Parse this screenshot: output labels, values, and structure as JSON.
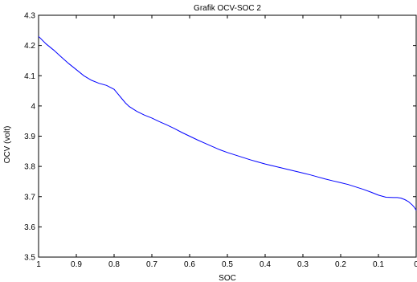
{
  "chart_data": {
    "type": "line",
    "title": "Grafik OCV-SOC 2",
    "xlabel": "SOC",
    "ylabel": "OCV (volt)",
    "xlim": [
      1,
      0
    ],
    "ylim": [
      3.5,
      4.3
    ],
    "x_reversed": true,
    "grid": false,
    "legend": "none",
    "xticks": [
      1,
      0.9,
      0.8,
      0.7,
      0.6,
      0.5,
      0.4,
      0.3,
      0.2,
      0.1,
      0
    ],
    "xtick_labels": [
      "1",
      "0.9",
      "0.8",
      "0.7",
      "0.6",
      "0.5",
      "0.4",
      "0.3",
      "0.2",
      "0.1",
      "0"
    ],
    "yticks": [
      3.5,
      3.6,
      3.7,
      3.8,
      3.9,
      4.0,
      4.1,
      4.2,
      4.3
    ],
    "ytick_labels": [
      "3.5",
      "3.6",
      "3.7",
      "3.8",
      "3.9",
      "4",
      "4.1",
      "4.2",
      "4.3"
    ],
    "series": [
      {
        "color": "#0000ff",
        "x": [
          1.0,
          0.98,
          0.96,
          0.94,
          0.92,
          0.9,
          0.88,
          0.86,
          0.84,
          0.82,
          0.8,
          0.79,
          0.78,
          0.77,
          0.76,
          0.75,
          0.74,
          0.72,
          0.7,
          0.68,
          0.66,
          0.64,
          0.62,
          0.6,
          0.58,
          0.56,
          0.54,
          0.52,
          0.5,
          0.48,
          0.46,
          0.44,
          0.42,
          0.4,
          0.38,
          0.36,
          0.34,
          0.32,
          0.3,
          0.28,
          0.26,
          0.24,
          0.22,
          0.2,
          0.18,
          0.16,
          0.14,
          0.12,
          0.1,
          0.08,
          0.06,
          0.05,
          0.04,
          0.03,
          0.02,
          0.01,
          0.005,
          0.0
        ],
        "y": [
          4.23,
          4.205,
          4.185,
          4.162,
          4.14,
          4.12,
          4.1,
          4.085,
          4.075,
          4.068,
          4.055,
          4.04,
          4.025,
          4.01,
          3.998,
          3.99,
          3.982,
          3.97,
          3.96,
          3.948,
          3.937,
          3.925,
          3.912,
          3.9,
          3.888,
          3.877,
          3.866,
          3.855,
          3.846,
          3.838,
          3.83,
          3.822,
          3.815,
          3.808,
          3.802,
          3.796,
          3.79,
          3.784,
          3.778,
          3.772,
          3.765,
          3.758,
          3.752,
          3.746,
          3.74,
          3.732,
          3.724,
          3.715,
          3.705,
          3.698,
          3.697,
          3.697,
          3.695,
          3.69,
          3.683,
          3.672,
          3.665,
          3.655
        ]
      }
    ]
  }
}
